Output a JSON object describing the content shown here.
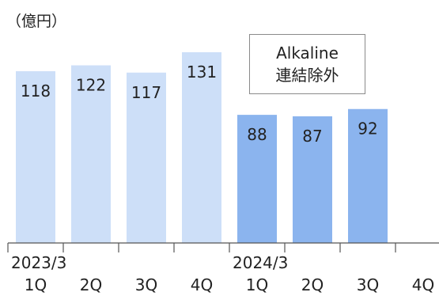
{
  "chart_data": {
    "type": "bar",
    "unit_label": "（億円）",
    "categories": [
      "1Q",
      "2Q",
      "3Q",
      "4Q",
      "1Q",
      "2Q",
      "3Q",
      "4Q"
    ],
    "year_labels": [
      {
        "label": "2023/3",
        "start_index": 0
      },
      {
        "label": "2024/3",
        "start_index": 4
      }
    ],
    "values": [
      118,
      122,
      117,
      131,
      88,
      87,
      92,
      null
    ],
    "bar_colors": [
      "#cddff8",
      "#cddff8",
      "#cddff8",
      "#cddff8",
      "#8bb4ee",
      "#8bb4ee",
      "#8bb4ee",
      "#8bb4ee"
    ],
    "annotation": {
      "line1": "Alkaline",
      "line2": "連結除外"
    },
    "ylim": [
      0,
      131
    ],
    "grid": false,
    "legend": "none"
  }
}
